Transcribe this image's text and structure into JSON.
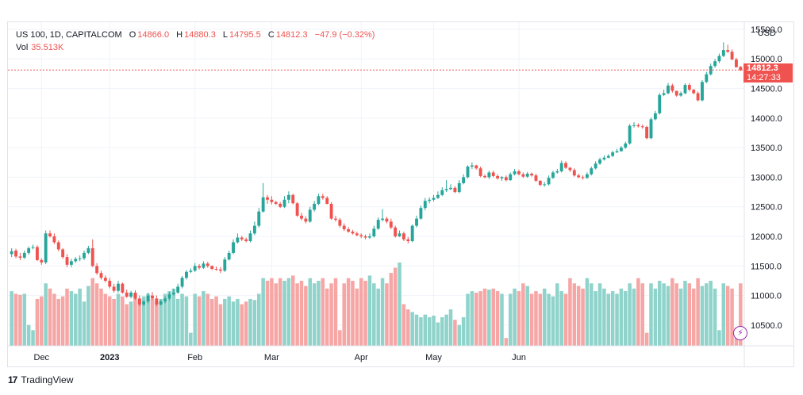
{
  "header": {
    "symbol_line": "US 100, 1D, CAPITALCOM",
    "open_label": "O",
    "open": "14866.0",
    "high_label": "H",
    "high": "14880.3",
    "low_label": "L",
    "low": "14795.5",
    "close_label": "C",
    "close": "14812.3",
    "change": "−47.9 (−0.32%)",
    "vol_label": "Vol",
    "vol_value": "35.513K",
    "currency": "USD"
  },
  "price_tag": {
    "price": "14812.3",
    "countdown": "14:27:33"
  },
  "brand": {
    "logo": "17",
    "name": "TradingView"
  },
  "colors": {
    "up": "#26a69a",
    "down": "#ef5350",
    "up_volume": "#8fd3cb",
    "down_volume": "#f5a6a5",
    "last_price_line": "#ef5350",
    "grid": "#f0f3fa",
    "axis_text": "#131722",
    "bolt": "#9c27b0"
  },
  "icons": {
    "lightning": "lightning-icon"
  },
  "chart_data": {
    "type": "candlestick",
    "ylim": [
      10150,
      15620
    ],
    "y_ticks": [
      "10500.0",
      "11000.0",
      "11500.0",
      "12000.0",
      "12500.0",
      "13000.0",
      "13500.0",
      "14000.0",
      "14500.0",
      "15000.0",
      "15500.0"
    ],
    "y_tick_values": [
      10500,
      11000,
      11500,
      12000,
      12500,
      13000,
      13500,
      14000,
      14500,
      15000,
      15500
    ],
    "x_ticks": [
      {
        "label": "Dec",
        "bar": 7
      },
      {
        "label": "2023",
        "bar": 23,
        "bold": true
      },
      {
        "label": "Feb",
        "bar": 43
      },
      {
        "label": "Mar",
        "bar": 61
      },
      {
        "label": "Apr",
        "bar": 82
      },
      {
        "label": "May",
        "bar": 99
      },
      {
        "label": "Jun",
        "bar": 119
      }
    ],
    "last_price": 14812.3,
    "volume_max": 1.6,
    "closes": [
      11750,
      11660,
      11640,
      11720,
      11800,
      11820,
      11600,
      11560,
      12050,
      12000,
      11900,
      11780,
      11650,
      11520,
      11580,
      11620,
      11630,
      11720,
      11800,
      11500,
      11380,
      11300,
      11250,
      11150,
      11080,
      11200,
      11050,
      10980,
      11050,
      10950,
      10850,
      10900,
      11000,
      10950,
      10850,
      10900,
      10950,
      11020,
      11050,
      11150,
      11300,
      11400,
      11420,
      11500,
      11470,
      11540,
      11500,
      11450,
      11440,
      11420,
      11610,
      11720,
      11900,
      11980,
      11950,
      11920,
      12050,
      12180,
      12420,
      12660,
      12620,
      12580,
      12550,
      12500,
      12620,
      12700,
      12560,
      12350,
      12300,
      12250,
      12450,
      12550,
      12680,
      12650,
      12550,
      12300,
      12280,
      12180,
      12120,
      12080,
      12050,
      12020,
      12000,
      11980,
      12000,
      12130,
      12280,
      12300,
      12250,
      12150,
      12000,
      12050,
      11950,
      11920,
      12180,
      12300,
      12480,
      12600,
      12620,
      12650,
      12700,
      12780,
      12800,
      12820,
      12750,
      12900,
      13000,
      13180,
      13200,
      13150,
      13020,
      13000,
      13080,
      13020,
      12980,
      13000,
      12950,
      13050,
      13100,
      13050,
      13010,
      13060,
      13030,
      12940,
      12870,
      12880,
      12990,
      13080,
      13100,
      13240,
      13160,
      13120,
      13030,
      13000,
      12990,
      13050,
      13150,
      13230,
      13300,
      13330,
      13360,
      13420,
      13440,
      13500,
      13570,
      13870,
      13880,
      13860,
      13850,
      13660,
      13980,
      14080,
      14390,
      14420,
      14550,
      14460,
      14380,
      14420,
      14560,
      14480,
      14420,
      14300,
      14610,
      14740,
      14880,
      14960,
      15050,
      15150,
      15120,
      14990,
      14860,
      14812
    ],
    "opens": [
      11700,
      11760,
      11660,
      11640,
      11720,
      11810,
      11820,
      11600,
      11560,
      12050,
      12000,
      11900,
      11780,
      11650,
      11520,
      11580,
      11620,
      11630,
      11720,
      11800,
      11500,
      11380,
      11300,
      11250,
      11150,
      11080,
      11200,
      11050,
      10980,
      11050,
      10950,
      10850,
      10900,
      11000,
      10950,
      10850,
      10900,
      10950,
      11020,
      11050,
      11150,
      11300,
      11400,
      11420,
      11500,
      11470,
      11540,
      11500,
      11450,
      11440,
      11420,
      11610,
      11720,
      11900,
      11980,
      11950,
      11920,
      12050,
      12180,
      12420,
      12660,
      12620,
      12580,
      12550,
      12500,
      12620,
      12700,
      12560,
      12350,
      12300,
      12250,
      12450,
      12550,
      12680,
      12650,
      12550,
      12300,
      12280,
      12180,
      12120,
      12080,
      12050,
      12020,
      12000,
      11980,
      12000,
      12130,
      12280,
      12300,
      12250,
      12150,
      12000,
      12050,
      11950,
      11920,
      12180,
      12300,
      12480,
      12600,
      12620,
      12650,
      12700,
      12780,
      12800,
      12820,
      12750,
      12900,
      13000,
      13180,
      13200,
      13150,
      13020,
      13000,
      13080,
      13020,
      12980,
      13000,
      12950,
      13050,
      13100,
      13050,
      13010,
      13060,
      13030,
      12940,
      12870,
      12880,
      12990,
      13080,
      13100,
      13240,
      13160,
      13120,
      13030,
      13000,
      12990,
      13050,
      13150,
      13230,
      13300,
      13330,
      13360,
      13420,
      13440,
      13500,
      13570,
      13870,
      13880,
      13860,
      13850,
      13660,
      13980,
      14080,
      14390,
      14420,
      14550,
      14460,
      14380,
      14420,
      14560,
      14480,
      14420,
      14300,
      14610,
      14740,
      14880,
      14960,
      15050,
      15150,
      15120,
      14990,
      14866
    ],
    "highs": [
      11800,
      11790,
      11720,
      11760,
      11830,
      11860,
      11850,
      11630,
      12100,
      12100,
      12050,
      11930,
      11800,
      11700,
      11620,
      11650,
      11680,
      11760,
      11840,
      11950,
      11550,
      11420,
      11340,
      11300,
      11200,
      11250,
      11220,
      11100,
      11080,
      11090,
      11000,
      10920,
      11050,
      11060,
      11000,
      10930,
      10990,
      11060,
      11110,
      11200,
      11330,
      11430,
      11460,
      11550,
      11530,
      11580,
      11570,
      11510,
      11490,
      11480,
      11650,
      11760,
      11950,
      12050,
      12010,
      11980,
      12100,
      12250,
      12480,
      12900,
      12700,
      12680,
      12600,
      12580,
      12680,
      12760,
      12720,
      12580,
      12400,
      12340,
      12500,
      12600,
      12720,
      12720,
      12680,
      12580,
      12350,
      12310,
      12220,
      12160,
      12110,
      12080,
      12050,
      12030,
      12050,
      12180,
      12320,
      12460,
      12330,
      12300,
      12180,
      12100,
      12080,
      11990,
      12200,
      12350,
      12520,
      12650,
      12660,
      12700,
      12760,
      12830,
      12950,
      12880,
      12850,
      12950,
      13050,
      13200,
      13250,
      13210,
      13180,
      13050,
      13110,
      13110,
      13050,
      13020,
      13030,
      13080,
      13140,
      13130,
      13080,
      13090,
      13080,
      13060,
      12950,
      12920,
      13030,
      13110,
      13140,
      13280,
      13270,
      13170,
      13150,
      13060,
      13030,
      13080,
      13180,
      13270,
      13330,
      13370,
      13390,
      13450,
      13480,
      13530,
      13600,
      13900,
      13930,
      13910,
      13890,
      13870,
      14010,
      14120,
      14420,
      14480,
      14590,
      14580,
      14460,
      14450,
      14590,
      14590,
      14490,
      14450,
      14640,
      14780,
      14920,
      15000,
      15090,
      15280,
      15240,
      15160,
      15020,
      14880
    ],
    "lows": [
      11650,
      11630,
      11600,
      11620,
      11690,
      11780,
      11580,
      11520,
      11530,
      11980,
      11870,
      11750,
      11620,
      11480,
      11480,
      11550,
      11580,
      11600,
      11700,
      11480,
      11350,
      11270,
      11220,
      11120,
      11050,
      11050,
      11030,
      10960,
      10950,
      10930,
      10820,
      10820,
      10870,
      10930,
      10820,
      10830,
      10870,
      10920,
      11000,
      11030,
      11120,
      11270,
      11380,
      11400,
      11440,
      11450,
      11470,
      11430,
      11420,
      11380,
      11400,
      11590,
      11700,
      11880,
      11920,
      11900,
      11900,
      12020,
      12150,
      12400,
      12550,
      12540,
      12530,
      12480,
      12480,
      12560,
      12540,
      12330,
      12270,
      12220,
      12230,
      12420,
      12530,
      12620,
      12540,
      12280,
      12250,
      12150,
      12090,
      12060,
      12030,
      12000,
      11970,
      11950,
      11960,
      11980,
      12110,
      12250,
      12220,
      12120,
      11980,
      11990,
      11920,
      11880,
      11900,
      12150,
      12280,
      12440,
      12560,
      12590,
      12630,
      12680,
      12750,
      12780,
      12730,
      12730,
      12880,
      12980,
      13140,
      13130,
      13000,
      12980,
      12970,
      13000,
      12960,
      12940,
      12930,
      12940,
      13030,
      13030,
      12990,
      12990,
      13010,
      12920,
      12850,
      12840,
      12860,
      12970,
      13060,
      13080,
      13140,
      13090,
      13010,
      12980,
      12960,
      12970,
      13030,
      13130,
      13210,
      13280,
      13320,
      13340,
      13410,
      13430,
      13480,
      13550,
      13840,
      13840,
      13820,
      13640,
      13640,
      13960,
      14060,
      14370,
      14400,
      14430,
      14360,
      14360,
      14400,
      14450,
      14400,
      14280,
      14280,
      14590,
      14720,
      14850,
      14930,
      15030,
      15100,
      14980,
      14850,
      14795
    ],
    "volumes": [
      1.05,
      1.0,
      0.98,
      1.0,
      0.4,
      0.3,
      0.9,
      0.95,
      1.2,
      1.1,
      1.0,
      0.9,
      0.95,
      1.1,
      1.05,
      1.0,
      1.1,
      0.85,
      1.15,
      1.3,
      1.2,
      1.1,
      1.0,
      0.95,
      0.9,
      1.0,
      0.95,
      0.8,
      0.85,
      1.0,
      0.9,
      0.95,
      1.0,
      0.9,
      0.85,
      0.9,
      1.0,
      1.05,
      1.1,
      0.9,
      1.0,
      0.95,
      0.25,
      1.0,
      0.95,
      1.05,
      1.0,
      0.9,
      0.95,
      0.8,
      0.9,
      0.95,
      0.85,
      0.9,
      0.8,
      0.85,
      0.9,
      0.88,
      1.0,
      1.3,
      1.25,
      1.3,
      1.2,
      1.3,
      1.25,
      1.3,
      1.35,
      1.2,
      1.25,
      1.15,
      1.3,
      1.2,
      1.25,
      1.3,
      1.1,
      1.2,
      1.3,
      0.3,
      1.2,
      1.3,
      1.25,
      1.1,
      1.3,
      1.25,
      1.35,
      1.2,
      1.1,
      1.3,
      1.2,
      1.4,
      1.5,
      1.6,
      0.8,
      0.7,
      0.65,
      0.6,
      0.55,
      0.6,
      0.55,
      0.58,
      0.45,
      0.55,
      0.6,
      0.7,
      0.5,
      0.4,
      0.55,
      1.0,
      1.05,
      1.02,
      1.05,
      1.1,
      1.08,
      1.1,
      1.05,
      1.0,
      0.15,
      1.0,
      1.1,
      1.05,
      1.2,
      1.15,
      1.0,
      1.05,
      1.0,
      1.1,
      1.0,
      0.95,
      1.2,
      1.05,
      1.0,
      1.3,
      1.2,
      1.15,
      1.1,
      1.3,
      1.2,
      1.05,
      1.2,
      1.1,
      1.0,
      1.05,
      1.0,
      1.1,
      1.05,
      1.2,
      1.1,
      1.3,
      1.2,
      0.25,
      1.2,
      1.1,
      1.25,
      1.2,
      1.15,
      1.3,
      1.2,
      1.1,
      1.25,
      1.2,
      1.1,
      1.3,
      1.15,
      1.2,
      1.25,
      1.1,
      0.3,
      1.2,
      1.15,
      1.1,
      0.35,
      1.2,
      1.25
    ]
  }
}
